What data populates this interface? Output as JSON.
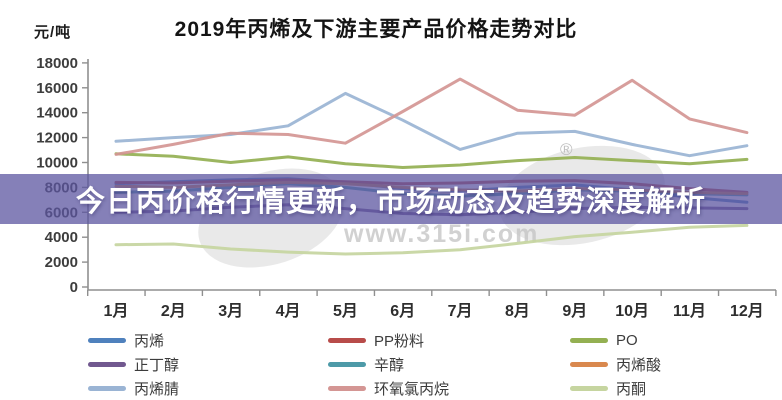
{
  "banner": {
    "text": "今日丙价格行情更新，市场动态及趋势深度解析",
    "bg_color": "#5c56a0",
    "text_color": "#ffffff"
  },
  "watermark": {
    "url_text": "www.315i.com",
    "registered_mark": "®",
    "color": "#c6c6c6"
  },
  "chart_data": {
    "type": "line",
    "title": "2019年丙烯及下游主要产品价格走势对比",
    "unit_label": "元/吨",
    "categories": [
      "1月",
      "2月",
      "3月",
      "4月",
      "5月",
      "6月",
      "7月",
      "8月",
      "9月",
      "10月",
      "11月",
      "12月"
    ],
    "ylim": [
      0,
      18000
    ],
    "ytick_step": 2000,
    "grid": false,
    "legend_position": "bottom",
    "legend_layout": "3-column",
    "series": [
      {
        "name": "丙烯",
        "color": "#4f81bd",
        "values": [
          8300,
          8450,
          8600,
          8700,
          8400,
          7900,
          7700,
          8000,
          8200,
          7800,
          7200,
          6800
        ]
      },
      {
        "name": "PP粉料",
        "color": "#b84c4a",
        "values": [
          8400,
          8350,
          8500,
          8600,
          8450,
          8300,
          8350,
          8500,
          8550,
          8300,
          7900,
          7600
        ]
      },
      {
        "name": "PO",
        "color": "#94b052",
        "values": [
          10700,
          10500,
          10000,
          10450,
          9900,
          9600,
          9800,
          10150,
          10400,
          10150,
          9900,
          10250
        ]
      },
      {
        "name": "正丁醇",
        "color": "#71588f",
        "values": [
          6000,
          6100,
          6400,
          6600,
          6300,
          5900,
          5800,
          6000,
          6300,
          6400,
          6350,
          6300
        ]
      },
      {
        "name": "辛醇",
        "color": "#4d9aa8",
        "values": [
          7600,
          7700,
          8000,
          8300,
          8000,
          7500,
          7300,
          7500,
          7800,
          7700,
          7500,
          7400
        ]
      },
      {
        "name": "丙烯酸",
        "color": "#d9884e",
        "values": [
          8100,
          8000,
          8200,
          8400,
          8300,
          8000,
          7800,
          7700,
          7900,
          7800,
          7600,
          7500
        ]
      },
      {
        "name": "丙烯腈",
        "color": "#9ab4d4",
        "values": [
          11700,
          12000,
          12250,
          12950,
          15550,
          13400,
          11050,
          12350,
          12500,
          11450,
          10550,
          11350
        ]
      },
      {
        "name": "环氧氯丙烷",
        "color": "#d49694",
        "values": [
          10650,
          11450,
          12350,
          12250,
          11550,
          14100,
          16700,
          14200,
          13800,
          16600,
          13500,
          12400
        ]
      },
      {
        "name": "丙酮",
        "color": "#c6d5a0",
        "values": [
          3400,
          3450,
          3050,
          2800,
          2650,
          2750,
          3000,
          3500,
          4050,
          4400,
          4800,
          4950
        ]
      }
    ]
  }
}
